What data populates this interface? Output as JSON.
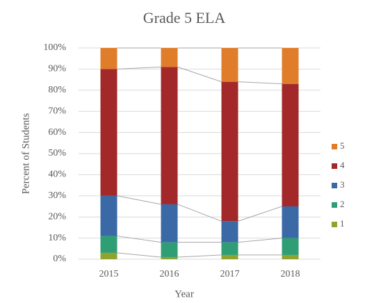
{
  "chart_data": {
    "type": "stacked_bar",
    "title": "Grade 5 ELA",
    "x_label": "Year",
    "y_label": "Percent of Students",
    "categories": [
      "2015",
      "2016",
      "2017",
      "2018"
    ],
    "series": [
      {
        "name": "1",
        "color": "#8fa32e",
        "values": [
          3,
          1,
          2,
          2
        ]
      },
      {
        "name": "2",
        "color": "#2f9e74",
        "values": [
          8,
          7,
          6,
          8
        ]
      },
      {
        "name": "3",
        "color": "#3b69a6",
        "values": [
          19,
          18,
          10,
          15
        ]
      },
      {
        "name": "4",
        "color": "#a3282a",
        "values": [
          60,
          65,
          66,
          58
        ]
      },
      {
        "name": "5",
        "color": "#e07d2b",
        "values": [
          10,
          9,
          16,
          17
        ]
      }
    ],
    "ylim": [
      0,
      100
    ],
    "yticks": [
      {
        "value": 0,
        "label": "0%"
      },
      {
        "value": 10,
        "label": "10%"
      },
      {
        "value": 20,
        "label": "20%"
      },
      {
        "value": 30,
        "label": "30%"
      },
      {
        "value": 40,
        "label": "40%"
      },
      {
        "value": 50,
        "label": "50%"
      },
      {
        "value": 60,
        "label": "60%"
      },
      {
        "value": 70,
        "label": "70%"
      },
      {
        "value": 80,
        "label": "80%"
      },
      {
        "value": 90,
        "label": "90%"
      },
      {
        "value": 100,
        "label": "100%"
      }
    ],
    "grid": true,
    "legend": "right"
  }
}
